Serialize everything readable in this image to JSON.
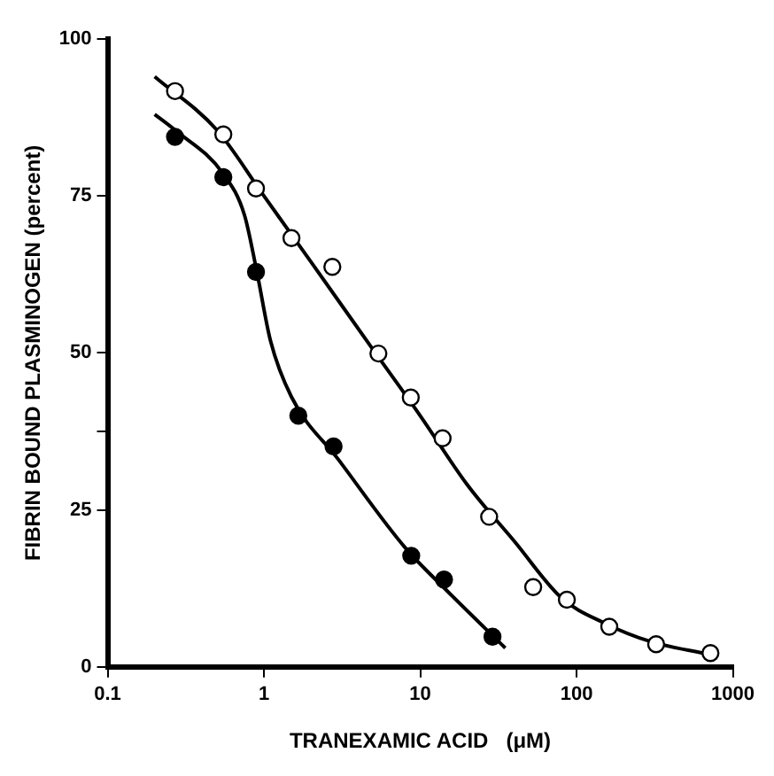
{
  "chart_data": {
    "type": "scatter",
    "xlabel": "TRANEXAMIC ACID   (μM)",
    "ylabel": "FIBRIN BOUND PLASMINOGEN (percent)",
    "log": "x",
    "grid": false,
    "legend": false,
    "xlim": [
      0.1,
      1000
    ],
    "xticks": [
      0.1,
      1,
      10,
      100,
      1000
    ],
    "ylim": [
      0,
      100
    ],
    "yticks": [
      0,
      25,
      {
        "value": 37.5,
        "label": null
      },
      50,
      75,
      100
    ],
    "series": [
      {
        "marker": "circle",
        "color": "#000000",
        "x": [
          0.27,
          0.55,
          0.89,
          1.5,
          2.74,
          5.4,
          8.7,
          13.9,
          27.6,
          52.8,
          86.7,
          162,
          323,
          719
        ],
        "values": [
          91.7,
          84.8,
          76.2,
          68.3,
          63.7,
          49.9,
          42.9,
          36.4,
          23.9,
          12.7,
          10.7,
          6.4,
          3.6,
          2.2
        ]
      },
      {
        "marker": "circle",
        "color": "#000000",
        "x": [
          0.27,
          0.55,
          0.89,
          1.66,
          2.79,
          8.76,
          14.2,
          29
        ],
        "values": [
          84.4,
          78.0,
          62.9,
          40.0,
          35.1,
          17.7,
          13.9,
          4.8
        ]
      },
      {
        "type": "line",
        "marker": "none",
        "color": "#000000",
        "x": [
          0.2,
          0.5,
          1,
          2,
          5,
          10,
          20,
          40,
          80,
          150,
          300,
          700
        ],
        "values": [
          94,
          85.5,
          75,
          64.5,
          50.5,
          40,
          29,
          20,
          11,
          7,
          4,
          2
        ]
      },
      {
        "type": "line",
        "marker": "none",
        "color": "#000000",
        "x": [
          0.2,
          0.27,
          0.55,
          0.75,
          0.9,
          1.1,
          1.5,
          3,
          8,
          15,
          35
        ],
        "values": [
          88,
          85.5,
          78.5,
          72,
          63,
          52,
          43,
          33,
          19,
          12,
          3
        ]
      }
    ]
  }
}
